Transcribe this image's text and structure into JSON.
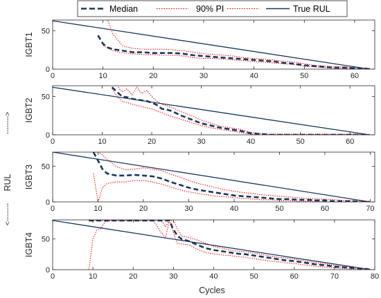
{
  "colors": {
    "median": "#17375e",
    "pi": "#ff0000",
    "true_rul": "#17375e",
    "axes": "#262626"
  },
  "legend": {
    "median": "Median",
    "pi": "90% PI",
    "true_rul": "True RUL"
  },
  "figure": {
    "xlabel": "Cycles",
    "ylabel": "RUL",
    "ylabel_arrow_up": "-------->",
    "ylabel_arrow_down": "<--------"
  },
  "chart_data": [
    {
      "type": "line",
      "ylabel": "IGBT1",
      "xlim": [
        0,
        64
      ],
      "ylim": [
        0,
        64
      ],
      "xticks": [
        0,
        10,
        20,
        30,
        40,
        50,
        60
      ],
      "yticks": [
        0,
        50
      ],
      "true_rul": {
        "x": [
          0,
          63
        ],
        "y": [
          63,
          0
        ]
      },
      "series": [
        {
          "name": "Median",
          "x": [
            9,
            10,
            11,
            12,
            14,
            16,
            18,
            20,
            22,
            24,
            26,
            28,
            30,
            32,
            34,
            36,
            38,
            40,
            42,
            44,
            46,
            48,
            50,
            52,
            54,
            56,
            58,
            60,
            62,
            63
          ],
          "y": [
            44,
            33,
            28,
            26,
            24,
            22,
            22,
            21,
            21,
            21,
            20,
            18,
            17,
            16,
            15,
            14,
            13,
            12,
            11,
            10,
            8,
            7,
            5,
            4,
            3,
            2,
            2,
            1,
            1,
            0
          ]
        },
        {
          "name": "90% PI upper",
          "x": [
            11,
            12,
            14,
            16,
            18,
            20,
            22,
            24,
            26,
            28,
            30,
            32,
            34,
            36,
            38,
            40,
            42,
            44,
            46,
            48,
            50,
            52,
            54,
            56,
            58,
            60,
            62,
            63
          ],
          "y": [
            63,
            45,
            30,
            27,
            26,
            26,
            26,
            25,
            24,
            22,
            20,
            19,
            18,
            17,
            15,
            14,
            13,
            12,
            10,
            9,
            7,
            5,
            4,
            3,
            3,
            2,
            1,
            1
          ]
        },
        {
          "name": "90% PI lower",
          "x": [
            10,
            12,
            14,
            16,
            18,
            20,
            22,
            24,
            26,
            28,
            30,
            32,
            34,
            36,
            38,
            40,
            42,
            44,
            46,
            48,
            50,
            52,
            54,
            56,
            58,
            60,
            62,
            63
          ],
          "y": [
            31,
            24,
            21,
            20,
            19,
            19,
            18,
            18,
            17,
            15,
            14,
            14,
            13,
            12,
            11,
            10,
            9,
            8,
            7,
            6,
            4,
            3,
            2,
            1,
            1,
            0,
            0,
            0
          ]
        }
      ]
    },
    {
      "type": "line",
      "ylabel": "IGBT2",
      "xlim": [
        0,
        65
      ],
      "ylim": [
        0,
        64
      ],
      "xticks": [
        0,
        10,
        20,
        30,
        40,
        50,
        60
      ],
      "yticks": [
        0,
        50
      ],
      "true_rul": {
        "x": [
          0,
          64
        ],
        "y": [
          62,
          0
        ]
      },
      "series": [
        {
          "name": "Median",
          "x": [
            12,
            13,
            14,
            15,
            16,
            17,
            18,
            19,
            20,
            21,
            22,
            23,
            24,
            26,
            28,
            30,
            32,
            34,
            36,
            38,
            40,
            42,
            44,
            46,
            48,
            50,
            52,
            54,
            56,
            58,
            60,
            62,
            64
          ],
          "y": [
            62,
            56,
            50,
            49,
            47,
            46,
            45,
            44,
            42,
            39,
            34,
            33,
            31,
            25,
            20,
            15,
            12,
            9,
            7,
            5,
            2,
            1,
            0,
            0,
            0,
            0,
            0,
            0,
            0,
            0,
            0,
            0,
            0
          ]
        },
        {
          "name": "90% PI upper",
          "x": [
            12,
            13,
            14,
            15,
            16,
            17,
            18,
            19,
            20,
            21,
            22,
            23,
            24,
            26,
            28,
            30,
            32,
            34,
            36,
            38,
            40,
            42,
            44,
            46,
            48,
            50,
            52,
            54,
            56,
            58,
            60,
            62,
            64
          ],
          "y": [
            64,
            64,
            56,
            60,
            52,
            62,
            54,
            58,
            50,
            44,
            40,
            38,
            36,
            30,
            25,
            19,
            15,
            11,
            9,
            7,
            3,
            2,
            1,
            1,
            1,
            1,
            1,
            1,
            1,
            1,
            1,
            1,
            0
          ]
        },
        {
          "name": "90% PI lower",
          "x": [
            12,
            13,
            14,
            15,
            16,
            17,
            18,
            19,
            20,
            21,
            22,
            23,
            24,
            26,
            28,
            30,
            32,
            34,
            36,
            38,
            40,
            42,
            44,
            46,
            48,
            50,
            52,
            54,
            56,
            58,
            60,
            62,
            64
          ],
          "y": [
            60,
            50,
            44,
            42,
            40,
            38,
            37,
            35,
            34,
            31,
            29,
            26,
            24,
            20,
            16,
            12,
            9,
            7,
            5,
            3,
            1,
            0,
            0,
            0,
            0,
            0,
            0,
            0,
            0,
            0,
            0,
            0,
            0
          ]
        }
      ]
    },
    {
      "type": "line",
      "ylabel": "IGBT3",
      "xlim": [
        0,
        71
      ],
      "ylim": [
        0,
        70
      ],
      "xticks": [
        0,
        10,
        20,
        30,
        40,
        50,
        60,
        70
      ],
      "yticks": [
        0,
        50
      ],
      "true_rul": {
        "x": [
          0,
          70
        ],
        "y": [
          70,
          0
        ]
      },
      "series": [
        {
          "name": "Median",
          "x": [
            9,
            10,
            11,
            12,
            14,
            16,
            18,
            20,
            22,
            24,
            26,
            28,
            30,
            32,
            34,
            36,
            38,
            40,
            42,
            44,
            46,
            48,
            50,
            52,
            54,
            56,
            58,
            60,
            62,
            64,
            66,
            68,
            70
          ],
          "y": [
            70,
            58,
            46,
            40,
            37,
            37,
            38,
            37,
            36,
            33,
            28,
            24,
            20,
            17,
            15,
            13,
            11,
            9,
            8,
            7,
            6,
            5,
            4,
            4,
            3,
            3,
            2,
            2,
            1,
            1,
            1,
            0,
            0
          ]
        },
        {
          "name": "90% PI upper",
          "x": [
            9,
            10,
            11,
            12,
            14,
            16,
            18,
            20,
            22,
            24,
            26,
            28,
            30,
            32,
            34,
            36,
            38,
            40,
            42,
            44,
            46,
            48,
            50,
            52,
            54,
            56,
            58,
            60,
            62,
            64,
            66,
            68,
            70
          ],
          "y": [
            70,
            70,
            66,
            60,
            50,
            45,
            46,
            48,
            46,
            44,
            39,
            35,
            30,
            26,
            23,
            20,
            17,
            15,
            13,
            12,
            10,
            9,
            8,
            7,
            6,
            5,
            4,
            4,
            3,
            2,
            2,
            1,
            1
          ]
        },
        {
          "name": "90% PI lower",
          "x": [
            9,
            10,
            11,
            12,
            14,
            16,
            18,
            20,
            22,
            24,
            26,
            28,
            30,
            32,
            34,
            36,
            38,
            40,
            42,
            44,
            46,
            48,
            50,
            52,
            54,
            56,
            58,
            60,
            62,
            64,
            66,
            68,
            70
          ],
          "y": [
            40,
            0,
            20,
            26,
            28,
            28,
            30,
            30,
            28,
            25,
            21,
            17,
            14,
            12,
            10,
            8,
            7,
            6,
            5,
            4,
            3,
            3,
            2,
            2,
            1,
            1,
            1,
            0,
            0,
            0,
            0,
            0,
            0
          ]
        }
      ]
    },
    {
      "type": "line",
      "ylabel": "IGBT4",
      "xlim": [
        0,
        80
      ],
      "ylim": [
        0,
        81
      ],
      "xticks": [
        0,
        10,
        20,
        30,
        40,
        50,
        60,
        70,
        80
      ],
      "yticks": [
        0,
        50
      ],
      "true_rul": {
        "x": [
          0,
          79
        ],
        "y": [
          80,
          0
        ]
      },
      "series": [
        {
          "name": "Median",
          "x": [
            9,
            11,
            13,
            15,
            17,
            19,
            21,
            23,
            25,
            27,
            29,
            30,
            31,
            32,
            34,
            36,
            38,
            40,
            42,
            44,
            46,
            48,
            50,
            52,
            54,
            56,
            58,
            60,
            62,
            64,
            66,
            68,
            70,
            72,
            74,
            76,
            78,
            79
          ],
          "y": [
            80,
            80,
            80,
            80,
            80,
            80,
            80,
            80,
            80,
            80,
            80,
            65,
            55,
            50,
            46,
            40,
            35,
            32,
            30,
            28,
            26,
            25,
            23,
            21,
            19,
            17,
            15,
            14,
            12,
            10,
            8,
            7,
            5,
            4,
            3,
            2,
            1,
            0
          ]
        },
        {
          "name": "90% PI upper",
          "x": [
            9,
            11,
            13,
            15,
            17,
            19,
            21,
            23,
            25,
            27,
            28,
            29,
            30,
            31,
            32,
            34,
            36,
            38,
            40,
            42,
            44,
            46,
            48,
            50,
            52,
            54,
            56,
            58,
            60,
            62,
            64,
            66,
            68,
            70,
            72,
            74,
            76,
            78,
            79
          ],
          "y": [
            80,
            80,
            80,
            80,
            80,
            80,
            80,
            80,
            80,
            80,
            70,
            80,
            80,
            65,
            55,
            52,
            48,
            43,
            38,
            35,
            32,
            30,
            29,
            27,
            25,
            22,
            20,
            19,
            17,
            15,
            13,
            11,
            9,
            7,
            5,
            4,
            3,
            1,
            1
          ]
        },
        {
          "name": "90% PI lower",
          "x": [
            9,
            10,
            11,
            12,
            13,
            15,
            17,
            19,
            21,
            23,
            25,
            27,
            28,
            29,
            30,
            31,
            32,
            34,
            36,
            38,
            40,
            42,
            44,
            46,
            48,
            50,
            52,
            54,
            56,
            58,
            60,
            62,
            64,
            66,
            68,
            70,
            72,
            74,
            76,
            78,
            79
          ],
          "y": [
            0,
            50,
            65,
            67,
            78,
            80,
            80,
            80,
            80,
            80,
            80,
            60,
            52,
            80,
            60,
            42,
            42,
            40,
            33,
            28,
            26,
            24,
            23,
            21,
            20,
            18,
            16,
            14,
            13,
            11,
            10,
            8,
            7,
            5,
            4,
            3,
            2,
            1,
            1,
            0,
            0
          ]
        }
      ]
    }
  ]
}
